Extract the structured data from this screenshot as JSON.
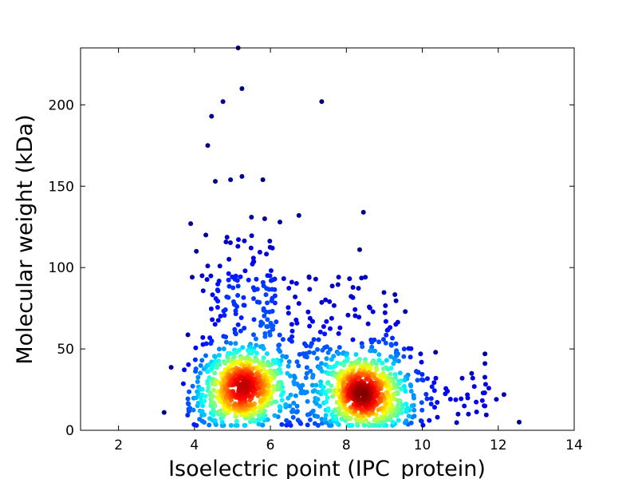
{
  "chart_data": {
    "type": "scatter",
    "title": "",
    "xlabel": "Isoelectric point (IPC_protein)",
    "ylabel": "Molecular weight (kDa)",
    "xlim": [
      1,
      14
    ],
    "ylim": [
      0,
      235
    ],
    "xticks": [
      2,
      4,
      6,
      8,
      10,
      12,
      14
    ],
    "yticks": [
      0,
      50,
      100,
      150,
      200
    ],
    "grid": false,
    "legend": "none",
    "color_mapping": "point density (jet colormap)",
    "clusters": [
      {
        "center_x": 5.3,
        "center_y": 26,
        "note": "dense acidic cluster"
      },
      {
        "center_x": 8.4,
        "center_y": 23,
        "note": "dense basic cluster"
      }
    ],
    "outliers": [
      {
        "x": 5.15,
        "y": 235
      },
      {
        "x": 5.25,
        "y": 210
      },
      {
        "x": 7.35,
        "y": 202
      },
      {
        "x": 4.75,
        "y": 202
      },
      {
        "x": 4.45,
        "y": 193
      },
      {
        "x": 4.35,
        "y": 175
      },
      {
        "x": 5.25,
        "y": 156
      },
      {
        "x": 5.8,
        "y": 154
      },
      {
        "x": 4.55,
        "y": 153
      },
      {
        "x": 4.95,
        "y": 154
      },
      {
        "x": 8.45,
        "y": 134
      },
      {
        "x": 6.75,
        "y": 132
      },
      {
        "x": 5.5,
        "y": 131
      },
      {
        "x": 5.85,
        "y": 130
      },
      {
        "x": 6.25,
        "y": 128
      },
      {
        "x": 3.9,
        "y": 127
      },
      {
        "x": 4.3,
        "y": 120
      },
      {
        "x": 8.35,
        "y": 111
      },
      {
        "x": 4.05,
        "y": 110
      },
      {
        "x": 4.35,
        "y": 101
      },
      {
        "x": 4.2,
        "y": 95
      },
      {
        "x": 12.55,
        "y": 5
      },
      {
        "x": 12.15,
        "y": 22
      },
      {
        "x": 11.65,
        "y": 47
      },
      {
        "x": 11.65,
        "y": 41
      },
      {
        "x": 3.2,
        "y": 11
      },
      {
        "x": 10.35,
        "y": 48
      },
      {
        "x": 11.3,
        "y": 35
      },
      {
        "x": 11.05,
        "y": 32
      },
      {
        "x": 11.95,
        "y": 19
      }
    ]
  }
}
